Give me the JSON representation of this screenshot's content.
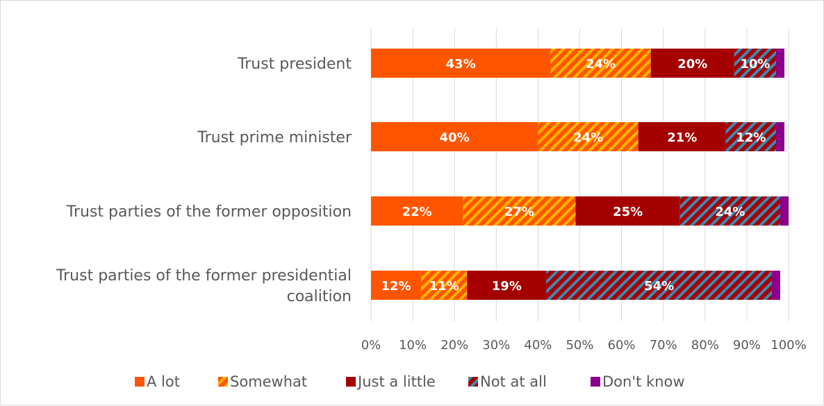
{
  "chart_data": {
    "type": "bar",
    "orientation": "horizontal",
    "stacked": true,
    "categories": [
      "Trust president",
      "Trust prime minister",
      "Trust parties of the former opposition",
      "Trust parties of the former presidential coalition"
    ],
    "category_label_lines": [
      [
        "Trust president"
      ],
      [
        "Trust prime minister"
      ],
      [
        "Trust parties of the former opposition"
      ],
      [
        "Trust parties of the former presidential",
        "coalition"
      ]
    ],
    "series": [
      {
        "name": "A lot",
        "values": [
          43,
          40,
          22,
          12
        ],
        "labels": [
          "43%",
          "40%",
          "22%",
          "12%"
        ],
        "color": "#ff5500",
        "pattern": "solid"
      },
      {
        "name": "Somewhat",
        "values": [
          24,
          24,
          27,
          11
        ],
        "labels": [
          "24%",
          "24%",
          "27%",
          "11%"
        ],
        "color": "#ff5500",
        "pattern_color": "#ffb400",
        "pattern": "diagonal-stripes"
      },
      {
        "name": "Just a little",
        "values": [
          20,
          21,
          25,
          19
        ],
        "labels": [
          "20%",
          "21%",
          "25%",
          "19%"
        ],
        "color": "#a50000",
        "pattern": "solid"
      },
      {
        "name": "Not at all",
        "values": [
          10,
          12,
          24,
          54
        ],
        "labels": [
          "10%",
          "12%",
          "24%",
          "54%"
        ],
        "color": "#a50000",
        "pattern_color": "#3a8bb5",
        "pattern": "diagonal-stripes"
      },
      {
        "name": "Don't know",
        "values": [
          2,
          2,
          2,
          2
        ],
        "labels": [
          "",
          "",
          "",
          ""
        ],
        "color": "#8b008b",
        "pattern": "solid"
      }
    ],
    "xlim": [
      0,
      100
    ],
    "xticks": [
      "0%",
      "10%",
      "20%",
      "30%",
      "40%",
      "50%",
      "60%",
      "70%",
      "80%",
      "90%",
      "100%"
    ],
    "grid": true,
    "legend_position": "bottom"
  }
}
